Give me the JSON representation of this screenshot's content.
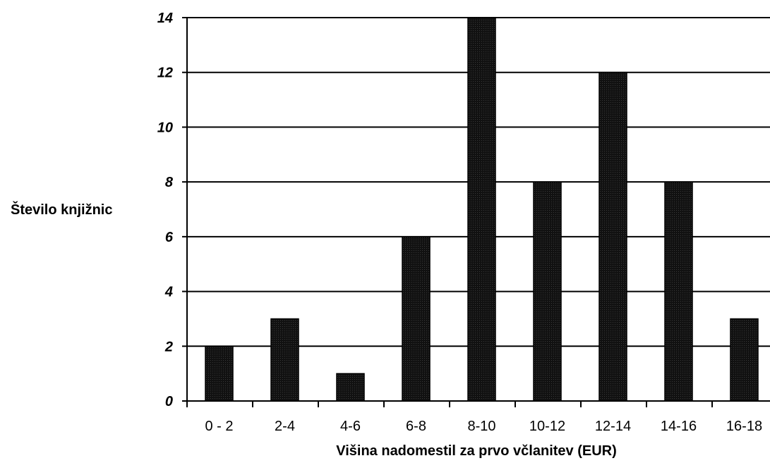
{
  "chart_data": {
    "type": "bar",
    "categories": [
      "0 - 2",
      "2-4",
      "4-6",
      "6-8",
      "8-10",
      "10-12",
      "12-14",
      "14-16",
      "16-18"
    ],
    "values": [
      2,
      3,
      1,
      6,
      14,
      8,
      12,
      8,
      3
    ],
    "xlabel": "Višina nadomestil za prvo včlanitev (EUR)",
    "ylabel": "Število knjižnic",
    "ylim": [
      0,
      14
    ],
    "yticks": [
      0,
      2,
      4,
      6,
      8,
      10,
      12,
      14
    ],
    "grid": true,
    "bar_color": "#111111",
    "legend": "none"
  }
}
